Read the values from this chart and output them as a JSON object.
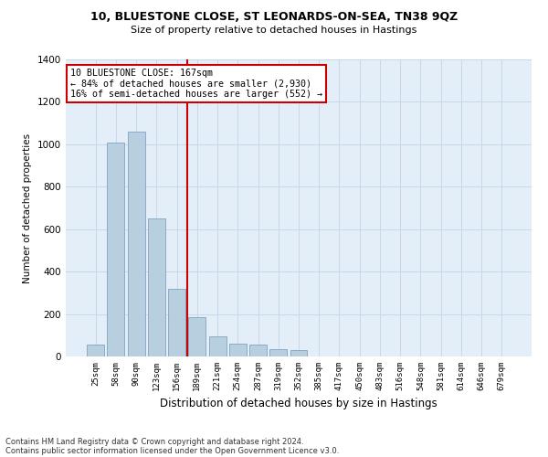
{
  "title1": "10, BLUESTONE CLOSE, ST LEONARDS-ON-SEA, TN38 9QZ",
  "title2": "Size of property relative to detached houses in Hastings",
  "xlabel": "Distribution of detached houses by size in Hastings",
  "ylabel": "Number of detached properties",
  "footnote1": "Contains HM Land Registry data © Crown copyright and database right 2024.",
  "footnote2": "Contains public sector information licensed under the Open Government Licence v3.0.",
  "annotation_line1": "10 BLUESTONE CLOSE: 167sqm",
  "annotation_line2": "← 84% of detached houses are smaller (2,930)",
  "annotation_line3": "16% of semi-detached houses are larger (552) →",
  "bar_color": "#b8cfe0",
  "bar_edge_color": "#7099bb",
  "grid_color": "#c8d8e8",
  "background_color": "#e4eef8",
  "vline_color": "#cc0000",
  "annotation_box_color": "#ffffff",
  "annotation_box_edge": "#cc0000",
  "categories": [
    "25sqm",
    "58sqm",
    "90sqm",
    "123sqm",
    "156sqm",
    "189sqm",
    "221sqm",
    "254sqm",
    "287sqm",
    "319sqm",
    "352sqm",
    "385sqm",
    "417sqm",
    "450sqm",
    "483sqm",
    "516sqm",
    "548sqm",
    "581sqm",
    "614sqm",
    "646sqm",
    "679sqm"
  ],
  "values": [
    55,
    1010,
    1060,
    650,
    320,
    185,
    95,
    60,
    55,
    35,
    30,
    0,
    0,
    0,
    0,
    0,
    0,
    0,
    0,
    0,
    0
  ],
  "vline_x": 4.5,
  "ylim": [
    0,
    1400
  ],
  "yticks": [
    0,
    200,
    400,
    600,
    800,
    1000,
    1200,
    1400
  ],
  "fig_width": 6.0,
  "fig_height": 5.0,
  "dpi": 100
}
